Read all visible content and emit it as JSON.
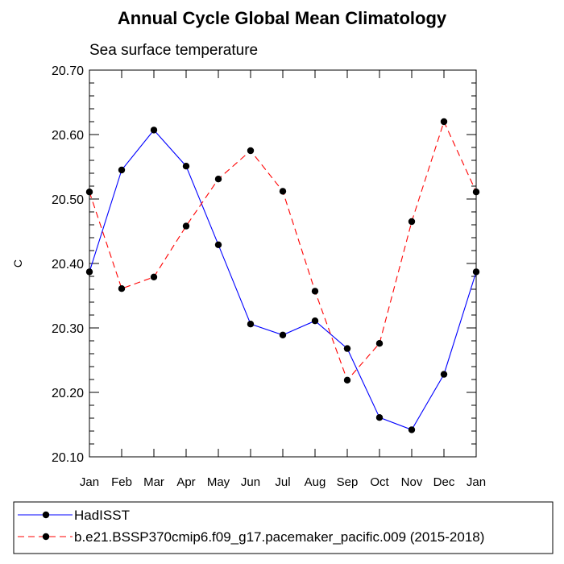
{
  "chart_data": {
    "type": "line",
    "title": "Annual Cycle Global Mean Climatology",
    "subtitle": "Sea surface temperature",
    "xlabel": "",
    "ylabel": "C",
    "categories": [
      "Jan",
      "Feb",
      "Mar",
      "Apr",
      "May",
      "Jun",
      "Jul",
      "Aug",
      "Sep",
      "Oct",
      "Nov",
      "Dec",
      "Jan"
    ],
    "ylim": [
      20.1,
      20.7
    ],
    "yticks": [
      "20.10",
      "20.20",
      "20.30",
      "20.40",
      "20.50",
      "20.60",
      "20.70"
    ],
    "grid": false,
    "legend_position": "bottom",
    "series": [
      {
        "name": "HadISST",
        "color": "#0000ff",
        "line_style": "solid",
        "marker": "filled-circle",
        "values": [
          20.387,
          20.545,
          20.607,
          20.551,
          20.429,
          20.306,
          20.289,
          20.311,
          20.268,
          20.161,
          20.142,
          20.228,
          20.387
        ]
      },
      {
        "name": "b.e21.BSSP370cmip6.f09_g17.pacemaker_pacific.009 (2015-2018)",
        "color": "#ff0000",
        "line_style": "dashed",
        "marker": "filled-circle",
        "values": [
          20.511,
          20.361,
          20.379,
          20.458,
          20.531,
          20.575,
          20.512,
          20.357,
          20.219,
          20.276,
          20.465,
          20.62,
          20.511
        ]
      }
    ]
  }
}
